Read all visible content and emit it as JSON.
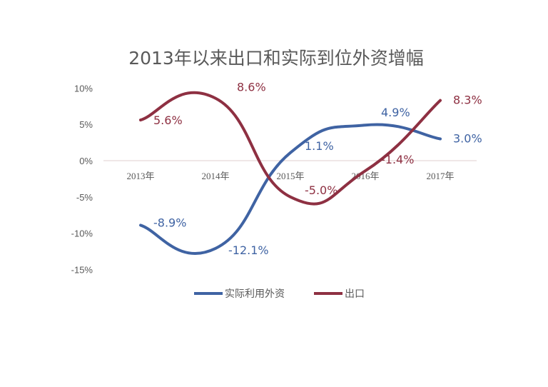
{
  "chart_data": {
    "type": "line",
    "title": "2013年以来出口和实际到位外资增幅",
    "categories": [
      "2013年",
      "2014年",
      "2015年",
      "2016年",
      "2017年"
    ],
    "ylim": [
      -15,
      10
    ],
    "yticks": [
      "10%",
      "5%",
      "0%",
      "-5%",
      "-10%",
      "-15%"
    ],
    "ytick_values": [
      10,
      5,
      0,
      -5,
      -10,
      -15
    ],
    "smooth": true,
    "grid": false,
    "legend_position": "bottom",
    "series": [
      {
        "name": "实际利用外资",
        "color": "#3F63A3",
        "values": [
          -8.9,
          -12.1,
          1.1,
          4.9,
          3.0
        ],
        "labels": [
          "-8.9%",
          "-12.1%",
          "1.1%",
          "4.9%",
          "3.0%"
        ]
      },
      {
        "name": "出口",
        "color": "#8E3042",
        "values": [
          5.6,
          8.6,
          -5.0,
          -1.4,
          8.3
        ],
        "labels": [
          "5.6%",
          "8.6%",
          "-5.0%",
          "-1.4%",
          "8.3%"
        ]
      }
    ]
  }
}
